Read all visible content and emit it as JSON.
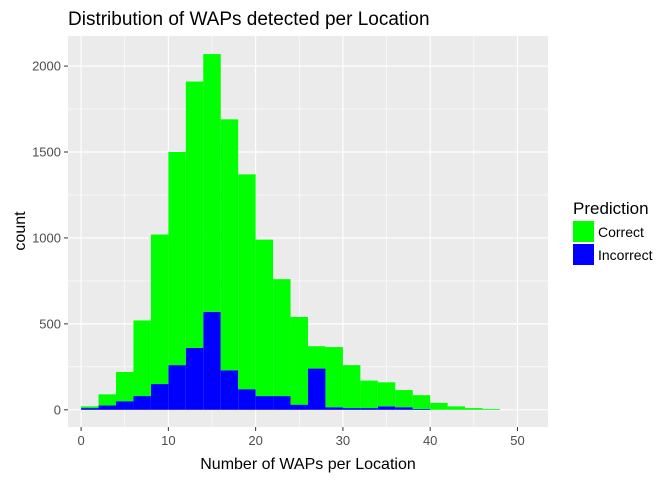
{
  "chart_data": {
    "type": "bar",
    "title": "Distribution of WAPs detected per Location",
    "xlabel": "Number of WAPs per Location",
    "ylabel": "count",
    "xlim": [
      -1.5,
      53.5
    ],
    "ylim": [
      -100,
      2175
    ],
    "x_ticks": [
      0,
      10,
      20,
      30,
      40,
      50
    ],
    "y_ticks": [
      0,
      500,
      1000,
      1500,
      2000
    ],
    "bin_width": 2,
    "bins": [
      1,
      3,
      5,
      7,
      9,
      11,
      13,
      15,
      17,
      19,
      21,
      23,
      25,
      27,
      29,
      31,
      33,
      35,
      37,
      39,
      41,
      43,
      45,
      47
    ],
    "grid": true,
    "stacked": true,
    "legend_position": "right",
    "legend_title": "Prediction",
    "series": [
      {
        "name": "Incorrect",
        "color": "#0000FF",
        "values": [
          10,
          25,
          50,
          80,
          150,
          260,
          360,
          570,
          230,
          120,
          80,
          80,
          30,
          240,
          15,
          10,
          10,
          20,
          15,
          5,
          0,
          0,
          0,
          0
        ]
      },
      {
        "name": "Correct",
        "color": "#00FF00",
        "values": [
          10,
          65,
          170,
          440,
          870,
          1240,
          1550,
          1500,
          1460,
          1250,
          910,
          680,
          510,
          130,
          350,
          250,
          160,
          140,
          100,
          80,
          40,
          20,
          10,
          5
        ]
      }
    ]
  }
}
